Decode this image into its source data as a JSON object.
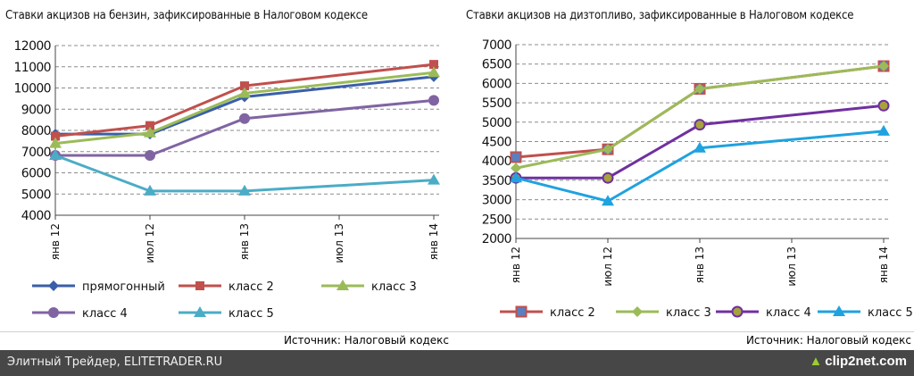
{
  "chart_data": [
    {
      "type": "line",
      "title": "Ставки акцизов на бензин, зафиксированные в Налоговом кодексе",
      "categories": [
        "янв 12",
        "июл 12",
        "янв 13",
        "июл 13",
        "янв 14"
      ],
      "ylim": [
        4000,
        12000
      ],
      "yticks": [
        4000,
        5000,
        6000,
        7000,
        8000,
        9000,
        10000,
        11000,
        12000
      ],
      "grid": true,
      "legend_position": "bottom",
      "series": [
        {
          "name": "прямогонный",
          "color": "#3a5fa8",
          "marker": "diamond",
          "points": [
            [
              0,
              7824
            ],
            [
              1,
              7824
            ],
            [
              2,
              9578
            ],
            [
              4,
              10530
            ]
          ]
        },
        {
          "name": "класс 2",
          "color": "#c0504d",
          "marker": "square",
          "points": [
            [
              0,
              7725
            ],
            [
              1,
              8225
            ],
            [
              2,
              10100
            ],
            [
              4,
              11110
            ]
          ]
        },
        {
          "name": "класс 3",
          "color": "#9bbb59",
          "marker": "triangle",
          "points": [
            [
              0,
              7382
            ],
            [
              1,
              7882
            ],
            [
              2,
              9750
            ],
            [
              4,
              10725
            ]
          ]
        },
        {
          "name": "класс 4",
          "color": "#8064a2",
          "marker": "circle",
          "points": [
            [
              0,
              6822
            ],
            [
              1,
              6822
            ],
            [
              2,
              8560
            ],
            [
              4,
              9416
            ]
          ]
        },
        {
          "name": "класс 5",
          "color": "#4bacc6",
          "marker": "triangle",
          "points": [
            [
              0,
              6822
            ],
            [
              1,
              5143
            ],
            [
              2,
              5143
            ],
            [
              4,
              5657
            ]
          ]
        }
      ]
    },
    {
      "type": "line",
      "title": "Ставки акцизов на дизтопливо, зафиксированные в Налоговом кодексе",
      "categories": [
        "янв 12",
        "июл 12",
        "янв 13",
        "июл 13",
        "янв 14"
      ],
      "ylim": [
        2000,
        7000
      ],
      "yticks": [
        2000,
        2500,
        3000,
        3500,
        4000,
        4500,
        5000,
        5500,
        6000,
        6500,
        7000
      ],
      "grid": true,
      "legend_position": "bottom",
      "series": [
        {
          "name": "класс 2",
          "color": "#c0504d",
          "marker": "square-blue",
          "points": [
            [
              0,
              4098
            ],
            [
              1,
              4300
            ],
            [
              2,
              5860
            ],
            [
              4,
              6446
            ]
          ]
        },
        {
          "name": "класс 3",
          "color": "#9bbb59",
          "marker": "diamond",
          "points": [
            [
              0,
              3814
            ],
            [
              1,
              4300
            ],
            [
              2,
              5860
            ],
            [
              4,
              6446
            ]
          ]
        },
        {
          "name": "класс 4",
          "color": "#7030a0",
          "marker": "circle-olive",
          "points": [
            [
              0,
              3562
            ],
            [
              1,
              3562
            ],
            [
              2,
              4934
            ],
            [
              4,
              5427
            ]
          ]
        },
        {
          "name": "класс 5",
          "color": "#1fa2e0",
          "marker": "triangle",
          "points": [
            [
              0,
              3562
            ],
            [
              1,
              2962
            ],
            [
              2,
              4334
            ],
            [
              4,
              4767
            ]
          ]
        }
      ]
    }
  ],
  "source_left": "Источник: Налоговый кодекс",
  "source_right": "Источник: Налоговый кодекс",
  "footer": {
    "site": "Элитный Трейдер, ELITETRADER.RU",
    "brand": "clip2net.com"
  }
}
